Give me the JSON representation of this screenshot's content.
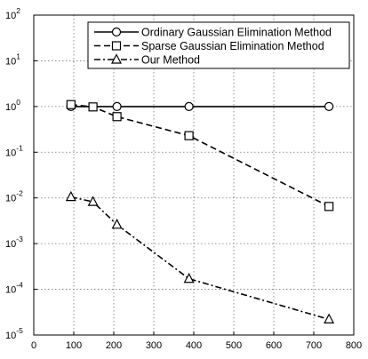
{
  "chart_data": {
    "type": "line",
    "title": "",
    "xlabel": "",
    "ylabel": "",
    "xlim": [
      0,
      800
    ],
    "ylim": [
      1e-05,
      100
    ],
    "yscale": "log",
    "grid": true,
    "legend_position": "top-right",
    "x_ticks": [
      {
        "value": 0,
        "label": "0"
      },
      {
        "value": 100,
        "label": "100"
      },
      {
        "value": 200,
        "label": "200"
      },
      {
        "value": 300,
        "label": "300"
      },
      {
        "value": 400,
        "label": "400"
      },
      {
        "value": 500,
        "label": "500"
      },
      {
        "value": 600,
        "label": "600"
      },
      {
        "value": 700,
        "label": "700"
      },
      {
        "value": 800,
        "label": "800"
      }
    ],
    "y_ticks": [
      {
        "exp": 2,
        "base": "10",
        "sup": "2"
      },
      {
        "exp": 1,
        "base": "10",
        "sup": "1"
      },
      {
        "exp": 0,
        "base": "10",
        "sup": "0"
      },
      {
        "exp": -1,
        "base": "10",
        "sup": "-1"
      },
      {
        "exp": -2,
        "base": "10",
        "sup": "-2"
      },
      {
        "exp": -3,
        "base": "10",
        "sup": "-3"
      },
      {
        "exp": -4,
        "base": "10",
        "sup": "-4"
      },
      {
        "exp": -5,
        "base": "10",
        "sup": "-5"
      }
    ],
    "series": [
      {
        "name": "Ordinary Gaussian Elimination Method",
        "marker": "circle",
        "line": "solid",
        "points": [
          [
            93,
            1.0
          ],
          [
            208,
            1.0
          ],
          [
            388,
            1.0
          ],
          [
            738,
            1.0
          ]
        ]
      },
      {
        "name": "Sparse Gaussian Elimination Method",
        "marker": "square",
        "line": "dashed",
        "points": [
          [
            93,
            1.1
          ],
          [
            148,
            0.98
          ],
          [
            208,
            0.6
          ],
          [
            388,
            0.23
          ],
          [
            738,
            0.0065
          ]
        ]
      },
      {
        "name": "Our Method",
        "marker": "triangle",
        "line": "dashdot",
        "points": [
          [
            93,
            0.0105
          ],
          [
            148,
            0.0082
          ],
          [
            208,
            0.0026
          ],
          [
            388,
            0.00017
          ],
          [
            738,
            2.2e-05
          ]
        ]
      }
    ]
  }
}
